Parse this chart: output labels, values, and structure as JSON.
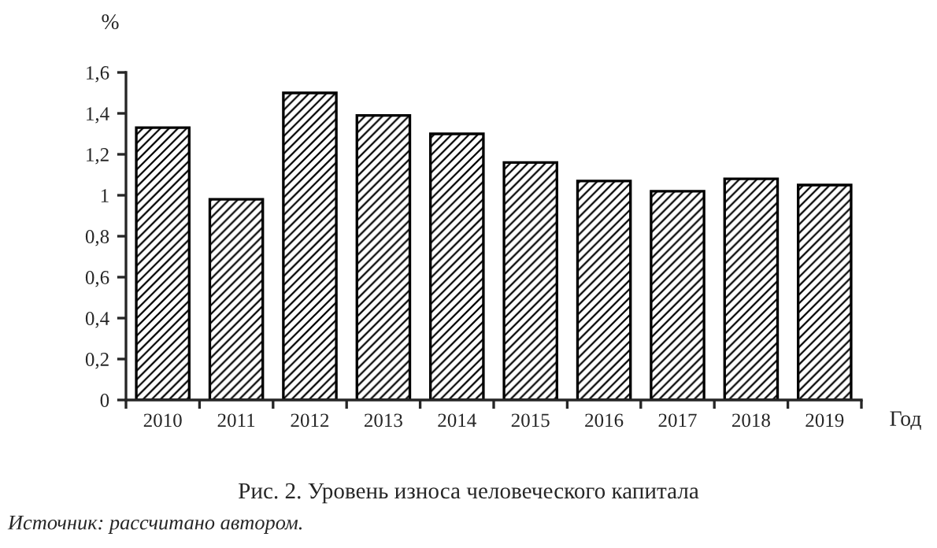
{
  "chart_data": {
    "type": "bar",
    "title": "Рис. 2. Уровень износа человеческого капитала",
    "xlabel": "Год",
    "ylabel": "%",
    "categories": [
      "2010",
      "2011",
      "2012",
      "2013",
      "2014",
      "2015",
      "2016",
      "2017",
      "2018",
      "2019"
    ],
    "values": [
      1.33,
      0.98,
      1.5,
      1.39,
      1.3,
      1.16,
      1.07,
      1.02,
      1.08,
      1.05
    ],
    "color": "#000000",
    "ylim": [
      0,
      1.6
    ],
    "yticks": [
      0,
      {
        "value": 0.2,
        "label": "0,2"
      },
      {
        "value": 0.4,
        "label": "0,4"
      },
      {
        "value": 0.6,
        "label": "0,6"
      },
      {
        "value": 0.8,
        "label": "0,8"
      },
      1,
      {
        "value": 1.2,
        "label": "1,2"
      },
      {
        "value": 1.4,
        "label": "1,4"
      },
      {
        "value": 1.6,
        "label": "1,6"
      }
    ],
    "grid": false,
    "legend": false,
    "annotations": [
      "Источник: рассчитано автором."
    ]
  }
}
